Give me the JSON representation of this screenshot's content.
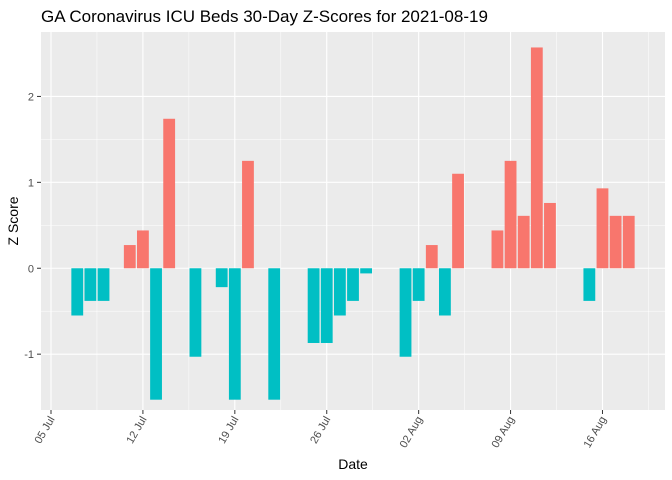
{
  "chart_data": {
    "type": "bar",
    "title": "GA Coronavirus ICU Beds 30-Day Z-Scores for 2021-08-19",
    "xlabel": "Date",
    "ylabel": "Z Score",
    "x_range": [
      "2021-07-05",
      "2021-08-20"
    ],
    "ylim": [
      -1.65,
      2.75
    ],
    "y_ticks": [
      -1,
      0,
      1,
      2
    ],
    "y_tick_labels": [
      "-1",
      "0",
      "1",
      "2"
    ],
    "x_ticks": [
      "2021-07-05",
      "2021-07-12",
      "2021-07-19",
      "2021-07-26",
      "2021-08-02",
      "2021-08-09",
      "2021-08-16"
    ],
    "x_tick_labels": [
      "05 Jul",
      "12 Jul",
      "19 Jul",
      "26 Jul",
      "02 Aug",
      "09 Aug",
      "16 Aug"
    ],
    "grid": true,
    "legend": "none",
    "colors": {
      "positive": "#F8766D",
      "negative": "#00BFC4",
      "panel": "#EBEBEB",
      "grid": "#FFFFFF"
    },
    "dates": [
      "2021-07-07",
      "2021-07-08",
      "2021-07-09",
      "2021-07-11",
      "2021-07-12",
      "2021-07-13",
      "2021-07-14",
      "2021-07-16",
      "2021-07-18",
      "2021-07-19",
      "2021-07-20",
      "2021-07-22",
      "2021-07-25",
      "2021-07-26",
      "2021-07-27",
      "2021-07-28",
      "2021-07-29",
      "2021-08-01",
      "2021-08-02",
      "2021-08-03",
      "2021-08-04",
      "2021-08-05",
      "2021-08-08",
      "2021-08-09",
      "2021-08-10",
      "2021-08-11",
      "2021-08-12",
      "2021-08-15",
      "2021-08-16",
      "2021-08-17",
      "2021-08-18"
    ],
    "values": [
      -0.55,
      -0.38,
      -0.38,
      0.27,
      0.44,
      -1.53,
      1.74,
      -1.03,
      -0.22,
      -1.53,
      1.25,
      -1.53,
      -0.87,
      -0.87,
      -0.55,
      -0.38,
      -0.06,
      -1.03,
      -0.38,
      0.27,
      -0.55,
      1.1,
      0.44,
      1.25,
      0.61,
      2.57,
      0.76,
      -0.38,
      0.93,
      0.61,
      0.61
    ]
  }
}
